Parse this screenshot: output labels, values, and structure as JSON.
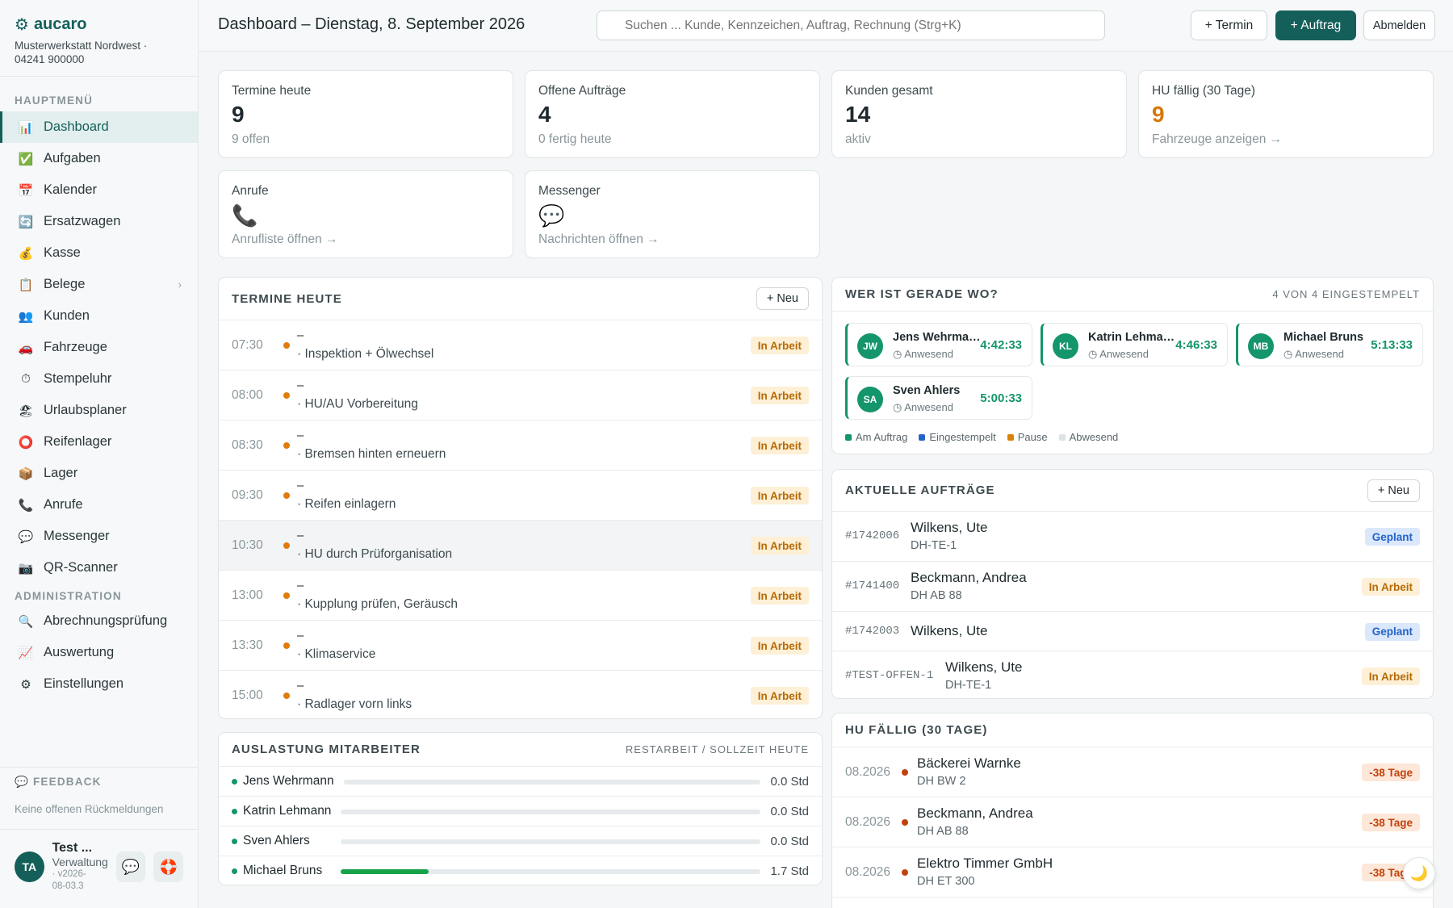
{
  "brand": {
    "name": "aucaro",
    "company": "Musterwerkstatt Nordwest ·",
    "phone": "04241 900000"
  },
  "nav": {
    "main_section": "HAUPTMENÜ",
    "main_items": [
      {
        "label": "Dashboard",
        "icon": "📊"
      },
      {
        "label": "Aufgaben",
        "icon": "✅"
      },
      {
        "label": "Kalender",
        "icon": "📅"
      },
      {
        "label": "Ersatzwagen",
        "icon": "🔄"
      },
      {
        "label": "Kasse",
        "icon": "💰"
      },
      {
        "label": "Belege",
        "icon": "📋"
      },
      {
        "label": "Kunden",
        "icon": "👥"
      },
      {
        "label": "Fahrzeuge",
        "icon": "🚗"
      },
      {
        "label": "Stempeluhr",
        "icon": "⏱"
      },
      {
        "label": "Urlaubsplaner",
        "icon": "🏖"
      },
      {
        "label": "Reifenlager",
        "icon": "⭕"
      },
      {
        "label": "Lager",
        "icon": "📦"
      },
      {
        "label": "Anrufe",
        "icon": "📞"
      },
      {
        "label": "Messenger",
        "icon": "💬"
      },
      {
        "label": "QR-Scanner",
        "icon": "📷"
      }
    ],
    "admin_section": "ADMINISTRATION",
    "admin_items": [
      {
        "label": "Abrechnungsprüfung",
        "icon": "🔍"
      },
      {
        "label": "Auswertung",
        "icon": "📈"
      },
      {
        "label": "Einstellungen",
        "icon": "⚙"
      }
    ]
  },
  "feedback": {
    "title": "FEEDBACK",
    "sub": "Keine offenen Rückmeldungen"
  },
  "user": {
    "initials": "TA",
    "name": "Test ...",
    "role": "Verwaltung",
    "version_a": "· v2026-",
    "version_b": "08-03.3"
  },
  "header": {
    "title": "Dashboard – Dienstag, 8. September 2026",
    "search_placeholder": "Suchen ... Kunde, Kennzeichen, Auftrag, Rechnung (Strg+K)",
    "btn_termin": "+ Termin",
    "btn_auftrag": "+ Auftrag",
    "btn_logout": "Abmelden"
  },
  "stats": [
    {
      "label": "Termine heute",
      "value": "9",
      "sub": "9 offen"
    },
    {
      "label": "Offene Aufträge",
      "value": "4",
      "sub": "0 fertig heute"
    },
    {
      "label": "Kunden gesamt",
      "value": "14",
      "sub": "aktiv"
    },
    {
      "label": "HU fällig (30 Tage)",
      "value": "9",
      "sub": "Fahrzeuge anzeigen →"
    }
  ],
  "quick": [
    {
      "label": "Anrufe",
      "icon": "📞",
      "sub": "Anrufliste öffnen →"
    },
    {
      "label": "Messenger",
      "icon": "💬",
      "sub": "Nachrichten öffnen →"
    }
  ],
  "appointments": {
    "title": "TERMINE HEUTE",
    "new_label": "+ Neu",
    "items": [
      {
        "time": "07:30",
        "dash": "–",
        "desc": "· Inspektion + Ölwechsel",
        "status": "In Arbeit"
      },
      {
        "time": "08:00",
        "dash": "–",
        "desc": "· HU/AU Vorbereitung",
        "status": "In Arbeit"
      },
      {
        "time": "08:30",
        "dash": "–",
        "desc": "· Bremsen hinten erneuern",
        "status": "In Arbeit"
      },
      {
        "time": "09:30",
        "dash": "–",
        "desc": "· Reifen einlagern",
        "status": "In Arbeit"
      },
      {
        "time": "10:30",
        "dash": "–",
        "desc": "· HU durch Prüforganisation",
        "status": "In Arbeit"
      },
      {
        "time": "13:00",
        "dash": "–",
        "desc": "· Kupplung prüfen, Geräusch",
        "status": "In Arbeit"
      },
      {
        "time": "13:30",
        "dash": "–",
        "desc": "· Klimaservice",
        "status": "In Arbeit"
      },
      {
        "time": "15:00",
        "dash": "–",
        "desc": "· Radlager vorn links",
        "status": "In Arbeit"
      }
    ]
  },
  "presence": {
    "title": "WER IST GERADE WO?",
    "count": "4 VON 4 EINGESTEMPELT",
    "employees": [
      {
        "initials": "JW",
        "name": "Jens Wehrmann",
        "status": "Anwesend",
        "time": "4:42:33"
      },
      {
        "initials": "KL",
        "name": "Katrin Lehmann",
        "status": "Anwesend",
        "time": "4:46:33"
      },
      {
        "initials": "MB",
        "name": "Michael Bruns",
        "status": "Anwesend",
        "time": "5:13:33"
      },
      {
        "initials": "SA",
        "name": "Sven Ahlers",
        "status": "Anwesend",
        "time": "5:00:33"
      }
    ],
    "legend": [
      {
        "label": "Am Auftrag",
        "color": "#14956c"
      },
      {
        "label": "Eingestempelt",
        "color": "#2563c9"
      },
      {
        "label": "Pause",
        "color": "#d9820b"
      },
      {
        "label": "Abwesend",
        "color": "#dde2e4"
      }
    ]
  },
  "orders": {
    "title": "AKTUELLE AUFTRÄGE",
    "new_label": "+ Neu",
    "items": [
      {
        "id": "#1742006",
        "name": "Wilkens, Ute",
        "plate": "DH-TE-1",
        "status": "Geplant"
      },
      {
        "id": "#1741400",
        "name": "Beckmann, Andrea",
        "plate": "DH AB 88",
        "status": "In Arbeit"
      },
      {
        "id": "#1742003",
        "name": "Wilkens, Ute",
        "plate": "",
        "status": "Geplant"
      },
      {
        "id": "#TEST-OFFEN-1",
        "name": "Wilkens, Ute",
        "plate": "DH-TE-1",
        "status": "In Arbeit"
      }
    ]
  },
  "utilization": {
    "title": "AUSLASTUNG MITARBEITER",
    "subtitle": "RESTARBEIT / SOLLZEIT HEUTE",
    "items": [
      {
        "name": "Jens Wehrmann",
        "value": "0.0 Std",
        "fraction": 0
      },
      {
        "name": "Katrin Lehmann",
        "value": "0.0 Std",
        "fraction": 0
      },
      {
        "name": "Sven Ahlers",
        "value": "0.0 Std",
        "fraction": 0
      },
      {
        "name": "Michael Bruns",
        "value": "1.7 Std",
        "fraction": 0.21
      }
    ]
  },
  "hu_due": {
    "title": "HU FÄLLIG (30 TAGE)",
    "items": [
      {
        "date": "08.2026",
        "name": "Bäckerei Warnke",
        "plate": "DH BW 2",
        "days": "-38 Tage"
      },
      {
        "date": "08.2026",
        "name": "Beckmann, Andrea",
        "plate": "DH AB 88",
        "days": "-38 Tage"
      },
      {
        "date": "08.2026",
        "name": "Elektro Timmer GmbH",
        "plate": "DH ET 300",
        "days": "-38 Tage"
      }
    ]
  },
  "theme_icon": "🌙"
}
